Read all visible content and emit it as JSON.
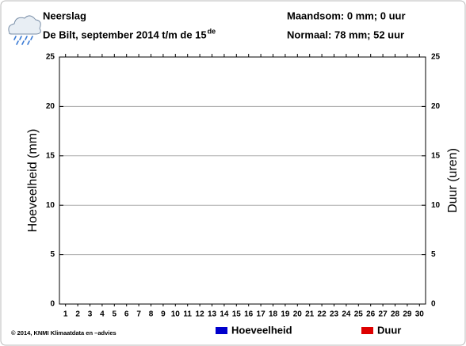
{
  "chart_data": {
    "type": "bar",
    "title": "Neerslag",
    "subtitle": "De Bilt, september 2014 t/m de 15",
    "subtitle_sup": "de",
    "annotations": [
      "Maandsom: 0 mm; 0 uur",
      "Normaal: 78 mm; 52 uur"
    ],
    "source": "© 2014, KNMI Klimaatdata en –advies",
    "y_label": "Hoeveelheid (mm)",
    "y2_label": "Duur (uren)",
    "categories": [
      "1",
      "2",
      "3",
      "4",
      "5",
      "6",
      "7",
      "8",
      "9",
      "10",
      "11",
      "12",
      "13",
      "14",
      "15",
      "16",
      "17",
      "18",
      "19",
      "20",
      "21",
      "22",
      "23",
      "24",
      "25",
      "26",
      "27",
      "28",
      "29",
      "30"
    ],
    "series": [
      {
        "name": "Hoeveelheid",
        "color": "#0000cc",
        "values": [
          0,
          0,
          0,
          0,
          0,
          0,
          0,
          0,
          0,
          0,
          0,
          0,
          0,
          0,
          0,
          null,
          null,
          null,
          null,
          null,
          null,
          null,
          null,
          null,
          null,
          null,
          null,
          null,
          null,
          null
        ]
      },
      {
        "name": "Duur",
        "color": "#dd0000",
        "axis": "y2",
        "values": [
          0,
          0,
          0,
          0,
          0,
          0,
          0,
          0,
          0,
          0,
          0,
          0,
          0,
          0,
          0,
          null,
          null,
          null,
          null,
          null,
          null,
          null,
          null,
          null,
          null,
          null,
          null,
          null,
          null,
          null
        ]
      }
    ],
    "ylim": [
      0,
      25
    ],
    "yticks": [
      0,
      5,
      10,
      15,
      20,
      25
    ],
    "y2lim": [
      0,
      25
    ],
    "y2ticks": [
      0,
      5,
      10,
      15,
      20,
      25
    ],
    "grid": true
  }
}
